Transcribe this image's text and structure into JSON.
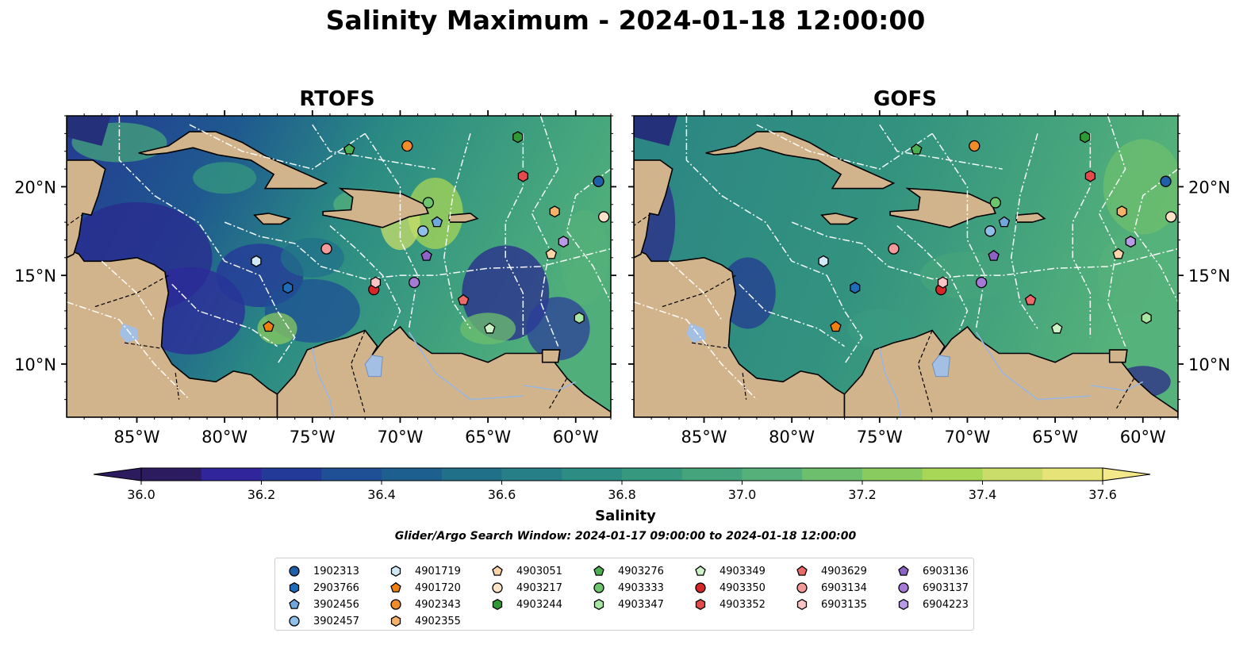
{
  "title": "Salinity Maximum - 2024-01-18 12:00:00",
  "panels": [
    {
      "title": "RTOFS",
      "style": "rtofs"
    },
    {
      "title": "GOFS",
      "style": "gofs"
    }
  ],
  "lat_labels": [
    "20°N",
    "15°N",
    "10°N"
  ],
  "lon_labels": [
    "85°W",
    "80°W",
    "75°W",
    "70°W",
    "65°W",
    "60°W"
  ],
  "map_extent": {
    "lon": [
      -89,
      -58
    ],
    "lat": [
      7,
      24
    ]
  },
  "colorbar": {
    "label": "Salinity",
    "range": [
      36.0,
      37.6
    ],
    "ticks": [
      "36.0",
      "36.2",
      "36.4",
      "36.6",
      "36.8",
      "37.0",
      "37.2",
      "37.4",
      "37.6"
    ],
    "colors": [
      "#2c1b5e",
      "#30259a",
      "#233a99",
      "#1f4f94",
      "#1d5f8e",
      "#21708a",
      "#267f86",
      "#2d8c84",
      "#35987f",
      "#45a47b",
      "#55b07a",
      "#6ebf6d",
      "#8acb5f",
      "#a8d657",
      "#cadd6a",
      "#e6e378",
      "#f4e98a"
    ]
  },
  "search_window": "Glider/Argo Search Window: 2024-01-17 09:00:00 to 2024-01-18 12:00:00",
  "floats": [
    {
      "id": "1902313",
      "marker": "circle",
      "color": "#1f5fa8",
      "lon": -58.7,
      "lat": 20.3
    },
    {
      "id": "2903766",
      "marker": "hexagon",
      "color": "#1f6cb8",
      "lon": -76.4,
      "lat": 14.3
    },
    {
      "id": "3902456",
      "marker": "pentagon",
      "color": "#6fa8dc",
      "lon": -67.9,
      "lat": 18.0
    },
    {
      "id": "3902457",
      "marker": "circle",
      "color": "#8fc0ea",
      "lon": -68.7,
      "lat": 17.5
    },
    {
      "id": "4901719",
      "marker": "hexagon",
      "color": "#cfe9f7",
      "lon": -78.2,
      "lat": 15.8
    },
    {
      "id": "4901720",
      "marker": "pentagon",
      "color": "#f07f12",
      "lon": -77.5,
      "lat": 12.1
    },
    {
      "id": "4902343",
      "marker": "circle",
      "color": "#f08c2a",
      "lon": -69.6,
      "lat": 22.3
    },
    {
      "id": "4902355",
      "marker": "hexagon",
      "color": "#f6b26b",
      "lon": -61.2,
      "lat": 18.6
    },
    {
      "id": "4903051",
      "marker": "pentagon",
      "color": "#fbd5a8",
      "lon": -61.4,
      "lat": 16.2
    },
    {
      "id": "4903217",
      "marker": "circle",
      "color": "#fde3c8",
      "lon": -58.4,
      "lat": 18.3
    },
    {
      "id": "4903244",
      "marker": "hexagon",
      "color": "#2e9a36",
      "lon": -63.3,
      "lat": 22.8
    },
    {
      "id": "4903276",
      "marker": "pentagon",
      "color": "#4caf50",
      "lon": -72.9,
      "lat": 22.1
    },
    {
      "id": "4903333",
      "marker": "circle",
      "color": "#6cc56c",
      "lon": -68.4,
      "lat": 19.1
    },
    {
      "id": "4903347",
      "marker": "hexagon",
      "color": "#a8e6a3",
      "lon": -59.8,
      "lat": 12.6
    },
    {
      "id": "4903349",
      "marker": "pentagon",
      "color": "#cdf2c7",
      "lon": -64.9,
      "lat": 12.0
    },
    {
      "id": "4903350",
      "marker": "circle",
      "color": "#d62728",
      "lon": -71.5,
      "lat": 14.2
    },
    {
      "id": "4903352",
      "marker": "hexagon",
      "color": "#e34a4a",
      "lon": -63.0,
      "lat": 20.6
    },
    {
      "id": "4903629",
      "marker": "pentagon",
      "color": "#ee6a6a",
      "lon": -66.4,
      "lat": 13.6
    },
    {
      "id": "6903134",
      "marker": "circle",
      "color": "#f49a9a",
      "lon": -74.2,
      "lat": 16.5
    },
    {
      "id": "6903135",
      "marker": "hexagon",
      "color": "#fbc4c4",
      "lon": -71.4,
      "lat": 14.6
    },
    {
      "id": "6903136",
      "marker": "pentagon",
      "color": "#8e63c6",
      "lon": -68.5,
      "lat": 16.1
    },
    {
      "id": "6903137",
      "marker": "circle",
      "color": "#a57ad6",
      "lon": -69.2,
      "lat": 14.6
    },
    {
      "id": "6904223",
      "marker": "hexagon",
      "color": "#b99ae6",
      "lon": -60.7,
      "lat": 16.9
    }
  ]
}
